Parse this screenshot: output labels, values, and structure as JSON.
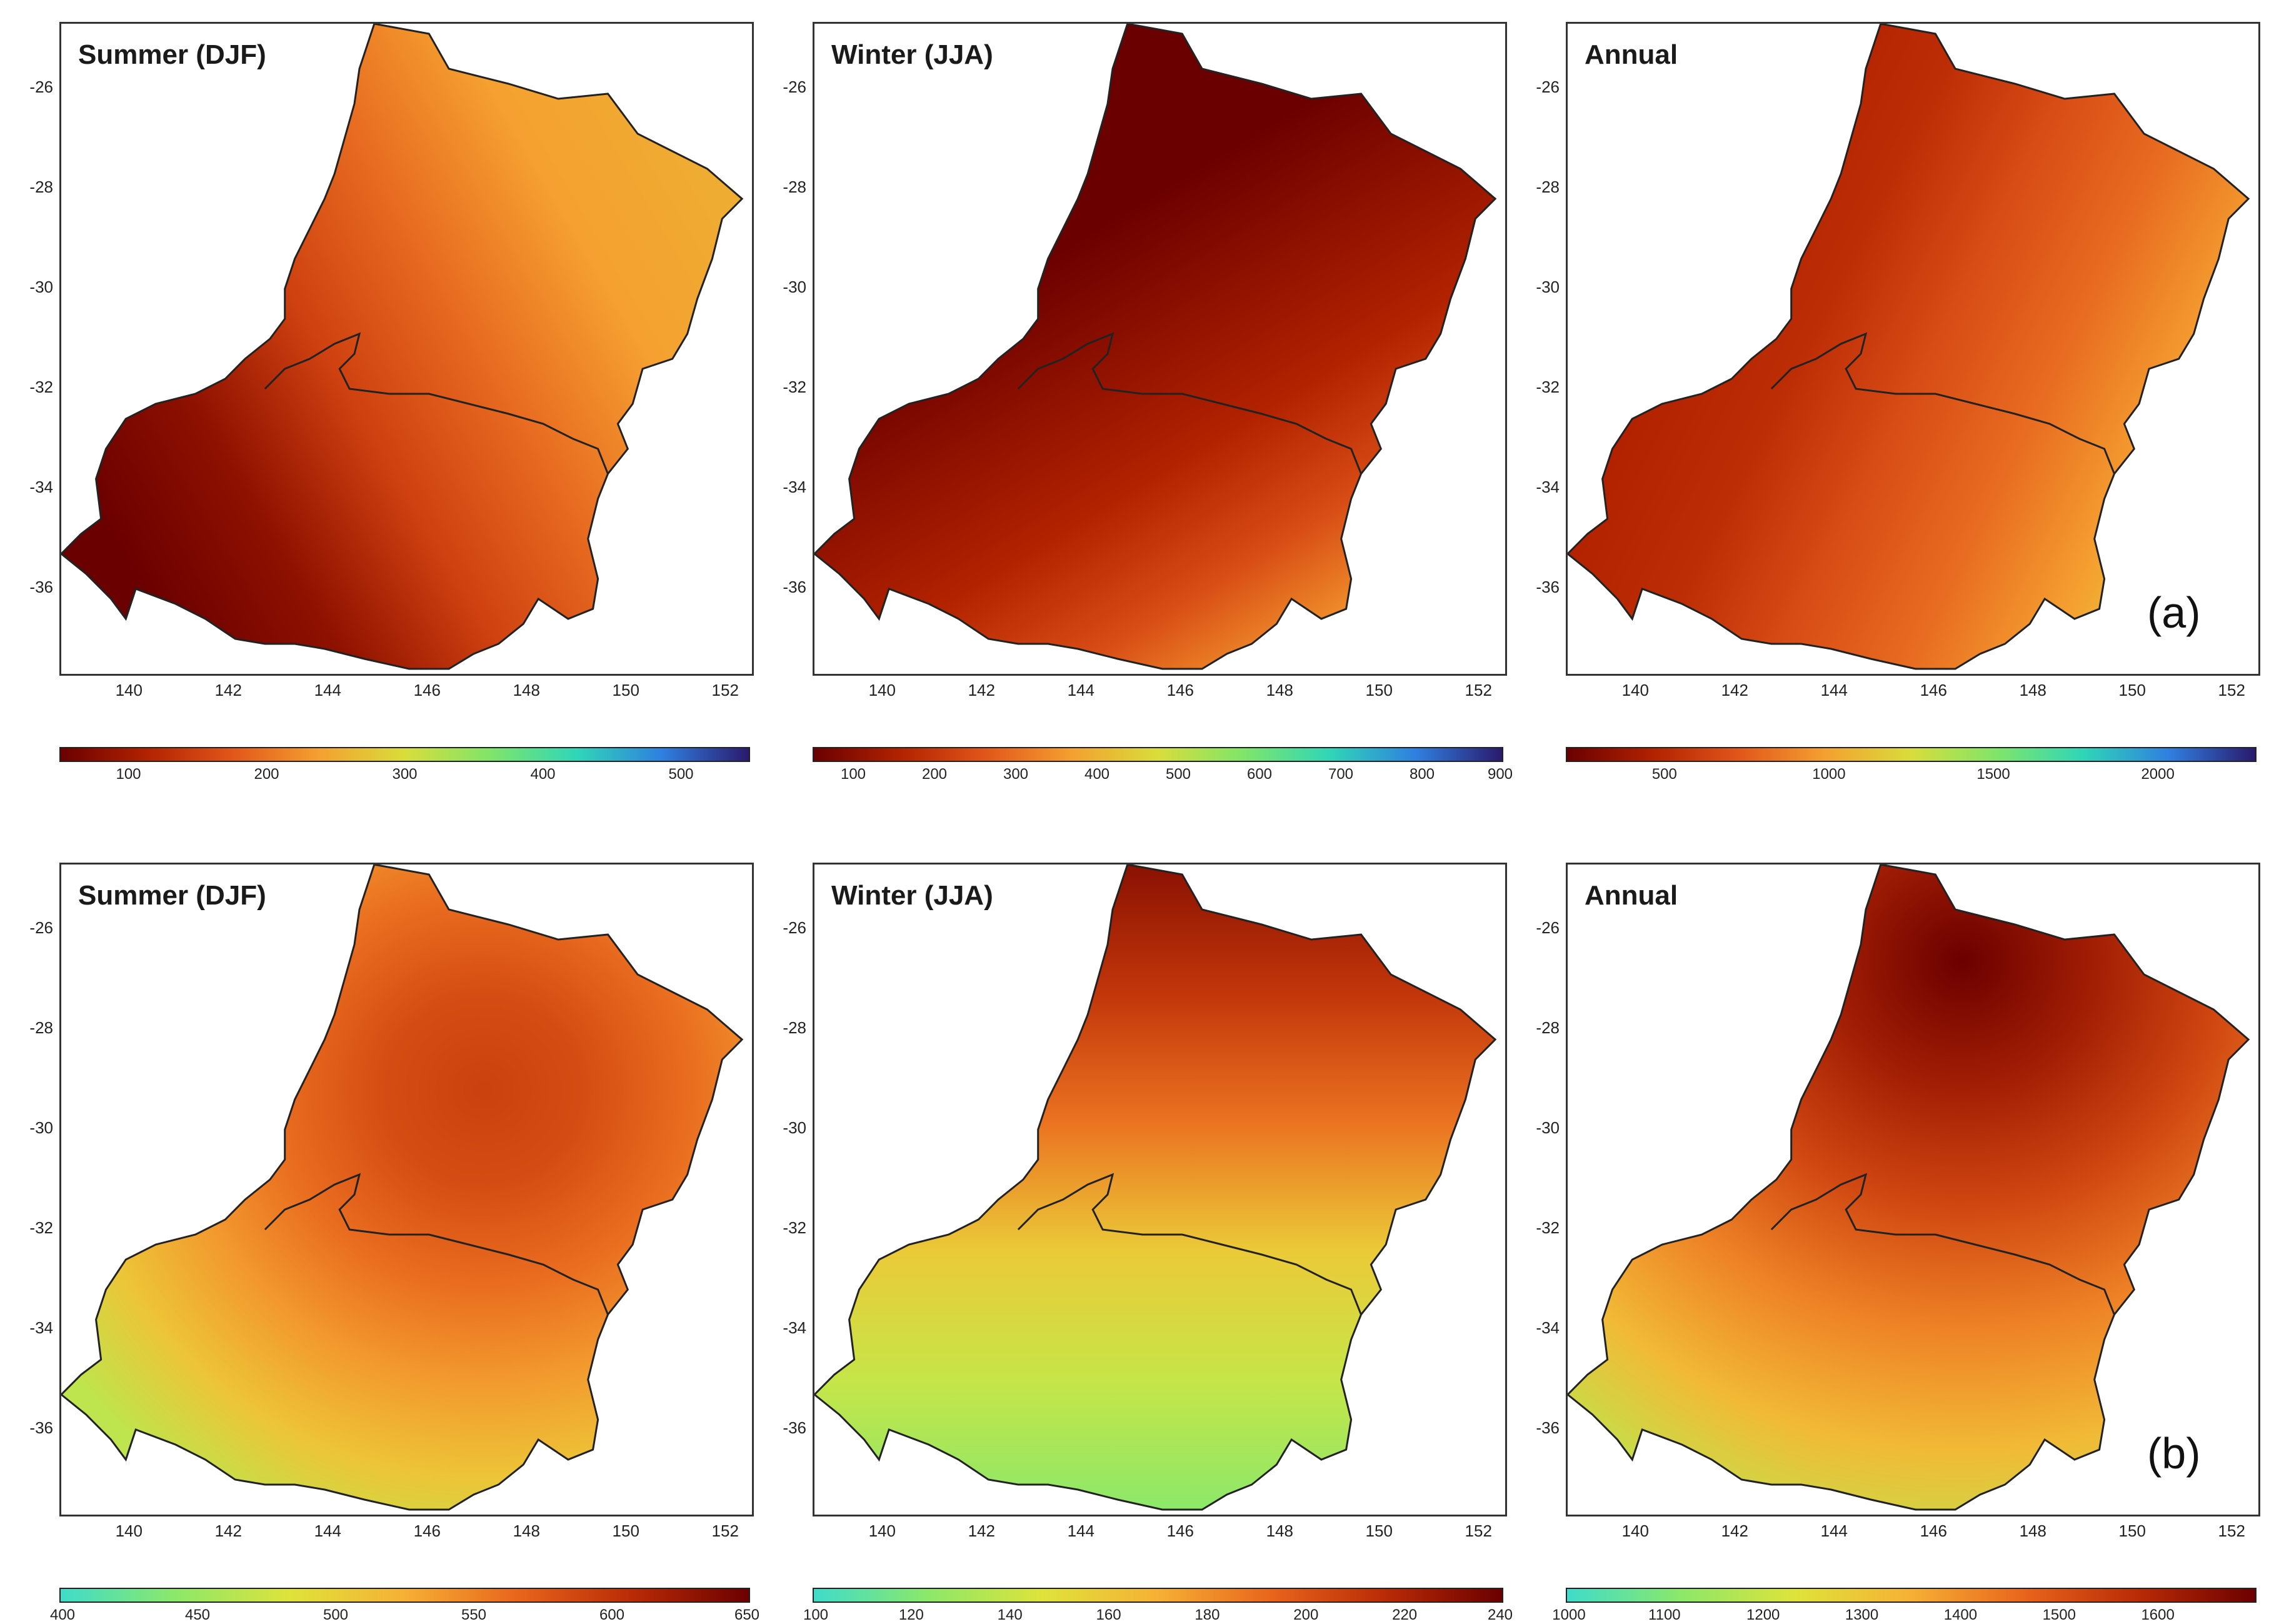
{
  "x_tick_labels": [
    "140",
    "142",
    "144",
    "146",
    "148",
    "150",
    "152"
  ],
  "y_tick_labels": [
    "-26",
    "-28",
    "-30",
    "-32",
    "-34",
    "-36"
  ],
  "rows": [
    {
      "row_label": "(a)",
      "panels": [
        {
          "title": "Summer (DJF)",
          "ramp": "wet",
          "seasonal_map": "summer_a",
          "colorbar": {
            "min": 50,
            "max": 550,
            "ticks": [
              "100",
              "200",
              "300",
              "400",
              "500"
            ]
          }
        },
        {
          "title": "Winter (JJA)",
          "ramp": "wet",
          "seasonal_map": "winter_a",
          "colorbar": {
            "min": 50,
            "max": 900,
            "ticks": [
              "100",
              "200",
              "300",
              "400",
              "500",
              "600",
              "700",
              "800",
              "900"
            ]
          }
        },
        {
          "title": "Annual",
          "ramp": "wet",
          "seasonal_map": "annual_a",
          "colorbar": {
            "min": 200,
            "max": 2300,
            "ticks": [
              "500",
              "1000",
              "1500",
              "2000"
            ]
          }
        }
      ]
    },
    {
      "row_label": "(b)",
      "panels": [
        {
          "title": "Summer (DJF)",
          "ramp": "dry",
          "seasonal_map": "summer_b",
          "colorbar": {
            "min": 400,
            "max": 650,
            "ticks": [
              "400",
              "450",
              "500",
              "550",
              "600",
              "650"
            ]
          }
        },
        {
          "title": "Winter (JJA)",
          "ramp": "dry",
          "seasonal_map": "winter_b",
          "colorbar": {
            "min": 100,
            "max": 240,
            "ticks": [
              "100",
              "120",
              "140",
              "160",
              "180",
              "200",
              "220",
              "240"
            ]
          }
        },
        {
          "title": "Annual",
          "ramp": "dry",
          "seasonal_map": "annual_b",
          "colorbar": {
            "min": 1000,
            "max": 1700,
            "ticks": [
              "1000",
              "1100",
              "1200",
              "1300",
              "1400",
              "1500",
              "1600"
            ]
          }
        }
      ]
    }
  ],
  "colors": {
    "ramp_wet": [
      "#6b0000",
      "#b22200",
      "#e2561a",
      "#f5a030",
      "#d9dd3a",
      "#7fe56a",
      "#2fd6b8",
      "#2f7fe0",
      "#2a1a6e"
    ],
    "ramp_dry": [
      "#3fdccb",
      "#8ce86a",
      "#dfe33a",
      "#f6b035",
      "#e8641c",
      "#b82a06",
      "#6b0000"
    ],
    "outline": "#222222"
  }
}
